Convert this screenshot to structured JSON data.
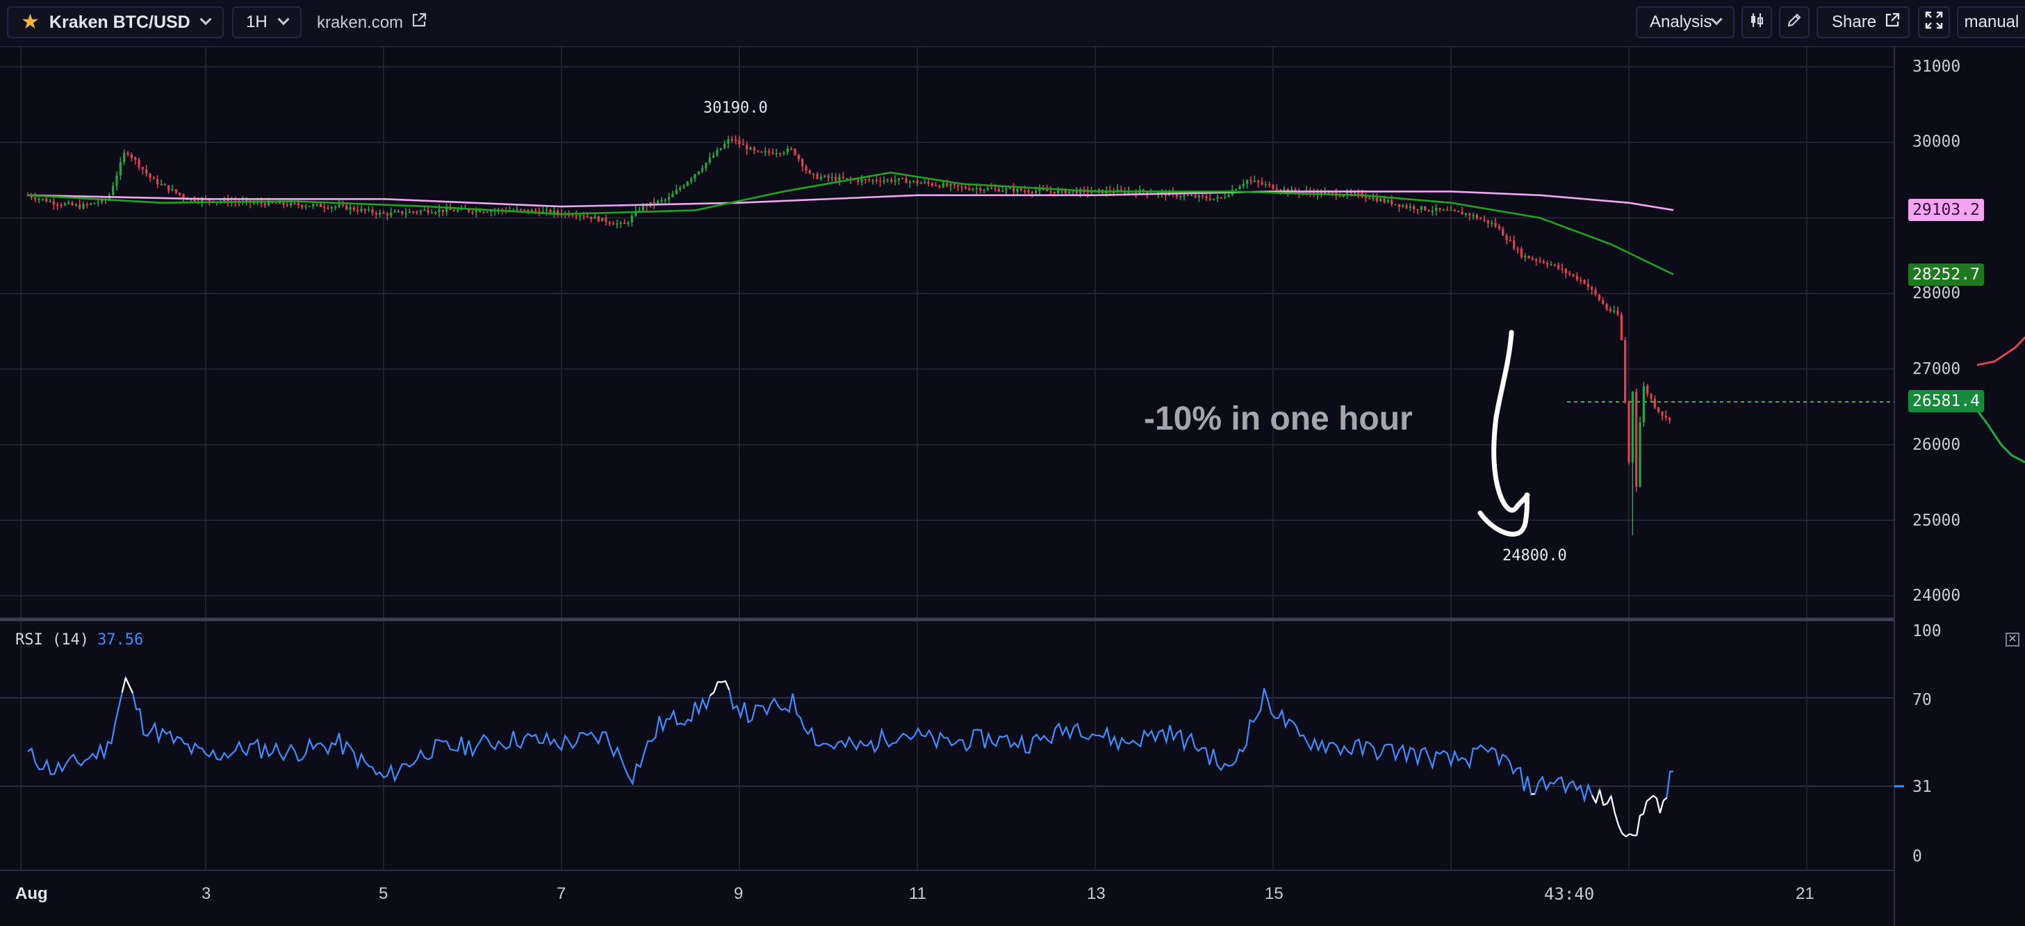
{
  "toolbar": {
    "symbol": "Kraken BTC/USD",
    "interval": "1H",
    "source": "kraken.com",
    "analysis_label": "Analysis",
    "share_label": "Share",
    "manual_label": "manual"
  },
  "annotations": {
    "drop_text": "-10% in one hour",
    "high_label": "30190.0",
    "low_label": "24800.0"
  },
  "price_axis": {
    "ticks": [
      "31000",
      "30000",
      "28000",
      "27000",
      "26000",
      "25000",
      "24000"
    ]
  },
  "price_tags": {
    "ma_pink": "29103.2",
    "ma_green": "28252.7",
    "last_price": "26581.4"
  },
  "rsi": {
    "label": "RSI (14)",
    "value": "37.56",
    "axis_ticks": [
      "100",
      "70",
      "31",
      "0"
    ],
    "close_symbol": "✕"
  },
  "time_axis": {
    "labels": [
      "Aug",
      "3",
      "5",
      "7",
      "9",
      "11",
      "13",
      "15",
      "43:40",
      "21"
    ]
  },
  "colors": {
    "background": "#0b0c17",
    "up_candle": "#26a641",
    "down_candle": "#e0424f",
    "ma_pink": "#f2a6f2",
    "ma_green": "#1fa31f",
    "rsi_line": "#3f8cff",
    "rsi_extreme": "#ffffff"
  },
  "chart_data": {
    "type": "candlestick",
    "symbol": "BTC/USD",
    "interval": "1H",
    "price_ylim": [
      23800,
      31200
    ],
    "x_range_days": [
      1.0,
      22.0
    ],
    "high": 30190.0,
    "low": 24800.0,
    "last": 26581.4,
    "price_path": [
      [
        1.0,
        29300
      ],
      [
        1.3,
        29200
      ],
      [
        1.6,
        29150
      ],
      [
        1.9,
        29250
      ],
      [
        2.1,
        29900
      ],
      [
        2.4,
        29500
      ],
      [
        2.8,
        29250
      ],
      [
        3.5,
        29200
      ],
      [
        4.5,
        29150
      ],
      [
        5.0,
        29050
      ],
      [
        5.5,
        29100
      ],
      [
        6.5,
        29100
      ],
      [
        7.2,
        29050
      ],
      [
        7.7,
        28900
      ],
      [
        7.9,
        29150
      ],
      [
        8.2,
        29250
      ],
      [
        8.6,
        29700
      ],
      [
        8.9,
        30050
      ],
      [
        9.2,
        29850
      ],
      [
        9.6,
        29900
      ],
      [
        9.8,
        29550
      ],
      [
        10.3,
        29500
      ],
      [
        10.8,
        29500
      ],
      [
        11.5,
        29400
      ],
      [
        12.5,
        29350
      ],
      [
        13.5,
        29350
      ],
      [
        14.4,
        29250
      ],
      [
        14.7,
        29500
      ],
      [
        15.2,
        29350
      ],
      [
        16.0,
        29300
      ],
      [
        16.5,
        29150
      ],
      [
        17.2,
        29050
      ],
      [
        17.5,
        28900
      ],
      [
        17.8,
        28500
      ],
      [
        18.1,
        28400
      ],
      [
        18.5,
        28150
      ],
      [
        18.75,
        27800
      ],
      [
        18.9,
        27700
      ],
      [
        19.05,
        24800
      ],
      [
        19.15,
        26800
      ],
      [
        19.3,
        26500
      ],
      [
        19.45,
        26300
      ],
      [
        19.5,
        26581.4
      ]
    ],
    "moving_averages": [
      {
        "color": "#f2a6f2",
        "last_value": 29103.2,
        "points": [
          [
            1.0,
            29300
          ],
          [
            3.0,
            29250
          ],
          [
            5.0,
            29250
          ],
          [
            7.0,
            29150
          ],
          [
            9.0,
            29200
          ],
          [
            11.0,
            29300
          ],
          [
            13.0,
            29300
          ],
          [
            15.0,
            29350
          ],
          [
            17.0,
            29350
          ],
          [
            18.0,
            29300
          ],
          [
            19.0,
            29200
          ],
          [
            19.5,
            29103.2
          ]
        ]
      },
      {
        "color": "#1fa31f",
        "last_value": 28252.7,
        "points": [
          [
            1.0,
            29300
          ],
          [
            2.5,
            29200
          ],
          [
            4.0,
            29220
          ],
          [
            5.5,
            29150
          ],
          [
            7.0,
            29050
          ],
          [
            8.5,
            29100
          ],
          [
            9.5,
            29350
          ],
          [
            10.7,
            29600
          ],
          [
            11.5,
            29450
          ],
          [
            13.0,
            29350
          ],
          [
            14.5,
            29350
          ],
          [
            16.0,
            29300
          ],
          [
            17.0,
            29200
          ],
          [
            18.0,
            29000
          ],
          [
            18.8,
            28650
          ],
          [
            19.5,
            28252.7
          ]
        ]
      }
    ],
    "rsi": {
      "period": 14,
      "last": 37.56,
      "ylim": [
        0,
        100
      ],
      "levels": [
        70,
        31
      ],
      "points": [
        [
          1.0,
          45
        ],
        [
          1.3,
          38
        ],
        [
          1.6,
          42
        ],
        [
          1.9,
          48
        ],
        [
          2.1,
          78
        ],
        [
          2.3,
          58
        ],
        [
          2.6,
          52
        ],
        [
          3.0,
          44
        ],
        [
          3.5,
          48
        ],
        [
          4.0,
          46
        ],
        [
          4.5,
          50
        ],
        [
          5.0,
          34
        ],
        [
          5.5,
          47
        ],
        [
          6.0,
          49
        ],
        [
          6.5,
          52
        ],
        [
          7.0,
          50
        ],
        [
          7.5,
          53
        ],
        [
          7.8,
          36
        ],
        [
          8.1,
          58
        ],
        [
          8.5,
          64
        ],
        [
          8.8,
          75
        ],
        [
          9.1,
          62
        ],
        [
          9.6,
          68
        ],
        [
          9.9,
          50
        ],
        [
          10.4,
          48
        ],
        [
          10.8,
          55
        ],
        [
          11.3,
          50
        ],
        [
          11.8,
          52
        ],
        [
          12.3,
          50
        ],
        [
          12.8,
          58
        ],
        [
          13.3,
          50
        ],
        [
          13.8,
          55
        ],
        [
          14.2,
          48
        ],
        [
          14.5,
          37
        ],
        [
          14.9,
          70
        ],
        [
          15.3,
          52
        ],
        [
          15.8,
          48
        ],
        [
          16.5,
          46
        ],
        [
          17.0,
          42
        ],
        [
          17.5,
          46
        ],
        [
          17.9,
          30
        ],
        [
          18.2,
          34
        ],
        [
          18.5,
          28
        ],
        [
          18.8,
          24
        ],
        [
          19.05,
          5
        ],
        [
          19.2,
          28
        ],
        [
          19.35,
          20
        ],
        [
          19.5,
          37.56
        ]
      ]
    }
  }
}
